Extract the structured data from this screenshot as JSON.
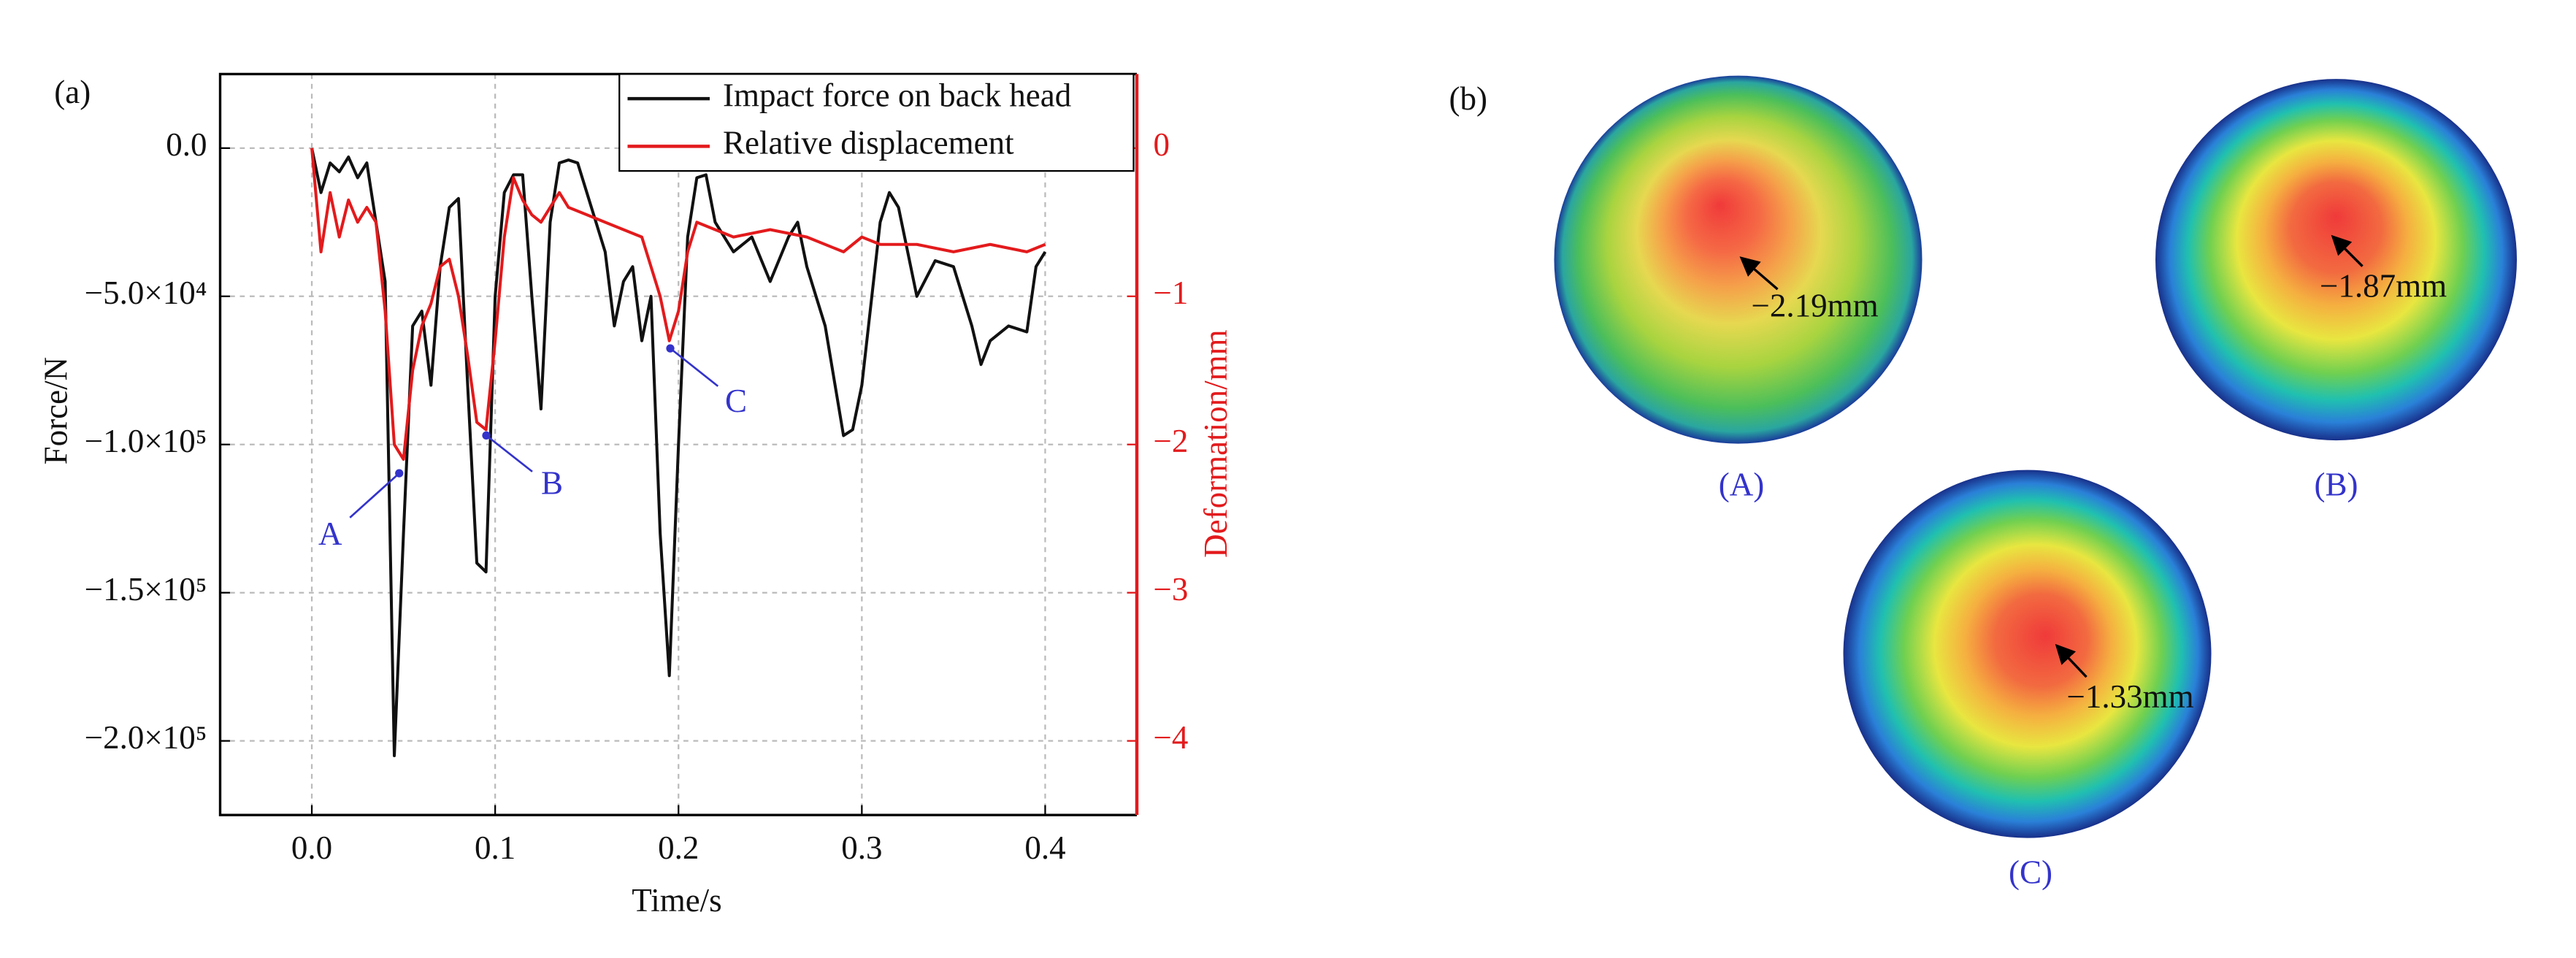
{
  "chart_data": {
    "type": "line",
    "panel_label": "(a)",
    "xlabel": "Time/s",
    "ylabel": "Force/N",
    "y2label": "Deformation/mm",
    "xlim": [
      -0.05,
      0.45
    ],
    "xticks": [
      {
        "value": 0,
        "label": "0.0"
      },
      0.1,
      0.2,
      0.3,
      0.4
    ],
    "ylim": [
      -225000,
      25000
    ],
    "yticks": [
      {
        "value": 0,
        "label": "0.0"
      },
      {
        "value": -50000,
        "label": "−5.0×10⁴"
      },
      {
        "value": -100000,
        "label": "−1.0×10⁵"
      },
      {
        "value": -150000,
        "label": "−1.5×10⁵"
      },
      {
        "value": -200000,
        "label": "−2.0×10⁵"
      }
    ],
    "y2lim": [
      -4.5,
      0.5
    ],
    "y2ticks": [
      0,
      {
        "value": -1,
        "label": "−1"
      },
      {
        "value": -2,
        "label": "−2"
      },
      {
        "value": -3,
        "label": "−3"
      },
      {
        "value": -4,
        "label": "−4"
      }
    ],
    "grid": true,
    "legend": "upper right",
    "series": [
      {
        "name": "Impact force on back head",
        "color": "#111111",
        "x": [
          0,
          0.005,
          0.01,
          0.015,
          0.02,
          0.025,
          0.03,
          0.035,
          0.04,
          0.045,
          0.05,
          0.055,
          0.06,
          0.065,
          0.07,
          0.075,
          0.08,
          0.085,
          0.09,
          0.095,
          0.1,
          0.105,
          0.11,
          0.115,
          0.12,
          0.125,
          0.13,
          0.135,
          0.14,
          0.145,
          0.15,
          0.16,
          0.165,
          0.17,
          0.175,
          0.18,
          0.185,
          0.19,
          0.195,
          0.2,
          0.205,
          0.21,
          0.215,
          0.22,
          0.23,
          0.24,
          0.25,
          0.26,
          0.265,
          0.27,
          0.28,
          0.29,
          0.295,
          0.3,
          0.31,
          0.315,
          0.32,
          0.33,
          0.34,
          0.35,
          0.36,
          0.365,
          0.37,
          0.38,
          0.39,
          0.395,
          0.4
        ],
        "values": [
          0,
          -15000,
          -5000,
          -8000,
          -3000,
          -10000,
          -5000,
          -25000,
          -45000,
          -205000,
          -130000,
          -60000,
          -55000,
          -80000,
          -40000,
          -20000,
          -17000,
          -80000,
          -140000,
          -143000,
          -50000,
          -15000,
          -9000,
          -9000,
          -50000,
          -88000,
          -25000,
          -5000,
          -4000,
          -5000,
          -15000,
          -35000,
          -60000,
          -45000,
          -40000,
          -65000,
          -50000,
          -130000,
          -178000,
          -100000,
          -30000,
          -10000,
          -9000,
          -25000,
          -35000,
          -30000,
          -45000,
          -30000,
          -25000,
          -40000,
          -60000,
          -97000,
          -95000,
          -80000,
          -25000,
          -15000,
          -20000,
          -50000,
          -38000,
          -40000,
          -60000,
          -73000,
          -65000,
          -60000,
          -62000,
          -40000,
          -35000
        ]
      },
      {
        "name": "Relative displacement",
        "color": "#e31a1c",
        "axis": "y2",
        "x": [
          0,
          0.005,
          0.01,
          0.015,
          0.02,
          0.025,
          0.03,
          0.035,
          0.04,
          0.045,
          0.05,
          0.055,
          0.06,
          0.065,
          0.07,
          0.075,
          0.08,
          0.085,
          0.09,
          0.095,
          0.1,
          0.105,
          0.11,
          0.115,
          0.12,
          0.125,
          0.13,
          0.135,
          0.14,
          0.15,
          0.16,
          0.17,
          0.18,
          0.185,
          0.19,
          0.195,
          0.2,
          0.205,
          0.21,
          0.22,
          0.23,
          0.25,
          0.27,
          0.29,
          0.3,
          0.31,
          0.33,
          0.35,
          0.37,
          0.39,
          0.4
        ],
        "values": [
          0,
          -0.7,
          -0.3,
          -0.6,
          -0.35,
          -0.5,
          -0.4,
          -0.5,
          -1.1,
          -2.0,
          -2.1,
          -1.5,
          -1.2,
          -1.05,
          -0.8,
          -0.75,
          -1.0,
          -1.4,
          -1.85,
          -1.9,
          -1.3,
          -0.6,
          -0.2,
          -0.35,
          -0.45,
          -0.5,
          -0.4,
          -0.3,
          -0.4,
          -0.45,
          -0.5,
          -0.55,
          -0.6,
          -0.8,
          -1.0,
          -1.3,
          -1.1,
          -0.7,
          -0.5,
          -0.55,
          -0.6,
          -0.55,
          -0.6,
          -0.7,
          -0.6,
          -0.65,
          -0.65,
          -0.7,
          -0.65,
          -0.7,
          -0.65
        ]
      }
    ],
    "annotations": [
      "A",
      "B",
      "C"
    ]
  },
  "panel_b": {
    "label": "(b)",
    "images": [
      {
        "caption": "(A)",
        "value_label": "−2.19mm"
      },
      {
        "caption": "(B)",
        "value_label": "−1.87mm"
      },
      {
        "caption": "(C)",
        "value_label": "−1.33mm"
      }
    ]
  }
}
